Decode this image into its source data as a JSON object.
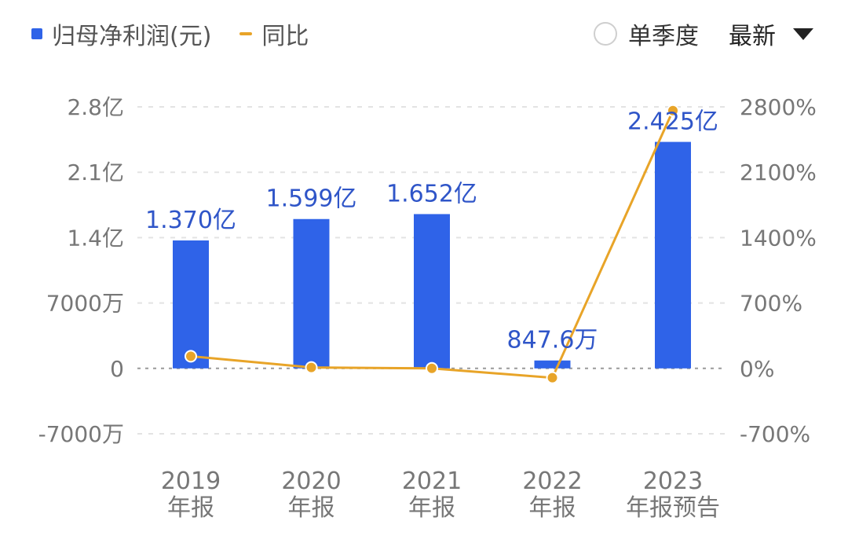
{
  "legend": {
    "bar_label": "归母净利润(元)",
    "line_label": "同比"
  },
  "controls": {
    "radio_label": "单季度",
    "dropdown_value": "最新"
  },
  "colors": {
    "bar": "#2f63e8",
    "line": "#e8a428",
    "data_label": "#2f55c8",
    "grid": "#e3e3e3",
    "zero_line": "#9a9a9a"
  },
  "chart_data": {
    "type": "bar",
    "categories": [
      [
        "2019",
        "年报"
      ],
      [
        "2020",
        "年报"
      ],
      [
        "2021",
        "年报"
      ],
      [
        "2022",
        "年报"
      ],
      [
        "2023",
        "年报预告"
      ]
    ],
    "series": [
      {
        "name": "归母净利润(元)",
        "type": "bar",
        "axis": "left",
        "values": [
          137000000,
          159900000,
          165200000,
          8476000,
          242500000
        ],
        "data_labels": [
          "1.370亿",
          "1.599亿",
          "1.652亿",
          "847.6万",
          "2.425亿"
        ]
      },
      {
        "name": "同比",
        "type": "line",
        "axis": "right",
        "values": [
          130,
          10,
          0,
          -100,
          2760
        ]
      }
    ],
    "left_axis": {
      "ylim": [
        -70000000,
        280000000
      ],
      "ticks": [
        280000000,
        210000000,
        140000000,
        70000000,
        0,
        -70000000
      ],
      "tick_labels": [
        "2.8亿",
        "2.1亿",
        "1.4亿",
        "7000万",
        "0",
        "-7000万"
      ]
    },
    "right_axis": {
      "ylim": [
        -700,
        2800
      ],
      "ticks": [
        2800,
        2100,
        1400,
        700,
        0,
        -700
      ],
      "tick_labels": [
        "2800%",
        "2100%",
        "1400%",
        "700%",
        "0%",
        "-700%"
      ]
    },
    "grid": true,
    "legend_position": "top-left"
  }
}
